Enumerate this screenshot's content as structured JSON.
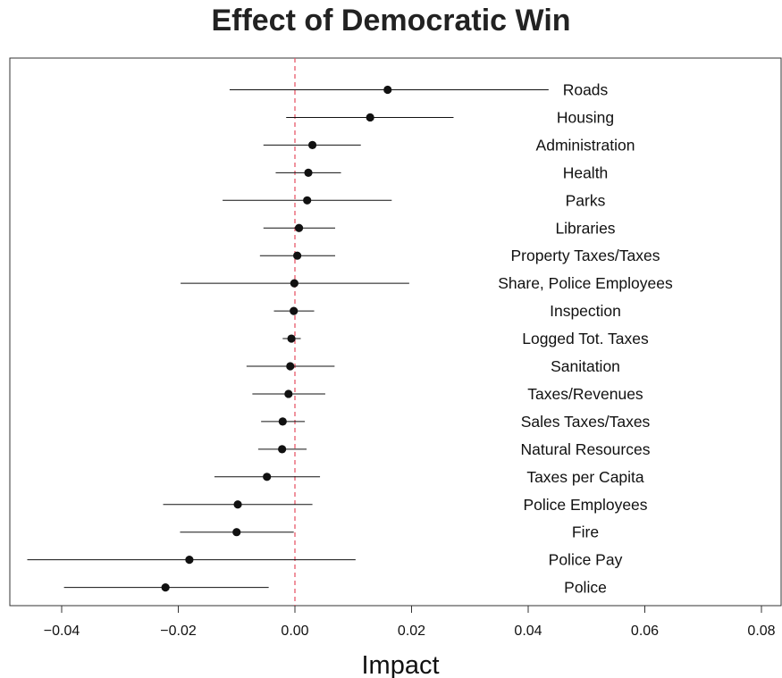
{
  "chart_data": {
    "type": "scatter",
    "title": "Effect of Democratic Win",
    "xlabel": "Impact",
    "ylabel": "",
    "xlim": [
      -0.049,
      0.0835
    ],
    "xticks": [
      -0.04,
      -0.02,
      0.0,
      0.02,
      0.04,
      0.06,
      0.08
    ],
    "xtick_labels": [
      "−0.04",
      "−0.02",
      "0.00",
      "0.02",
      "0.04",
      "0.06",
      "0.08"
    ],
    "reference_line": {
      "x": 0,
      "color": "#e8596a",
      "style": "dashed"
    },
    "grid": false,
    "rows": [
      {
        "label": "Roads",
        "estimate": 0.0159,
        "ci_low": -0.0112,
        "ci_high": 0.0435
      },
      {
        "label": "Housing",
        "estimate": 0.0129,
        "ci_low": -0.0015,
        "ci_high": 0.0272
      },
      {
        "label": "Administration",
        "estimate": 0.003,
        "ci_low": -0.0054,
        "ci_high": 0.0113
      },
      {
        "label": "Health",
        "estimate": 0.0023,
        "ci_low": -0.0033,
        "ci_high": 0.0079
      },
      {
        "label": "Parks",
        "estimate": 0.0021,
        "ci_low": -0.0124,
        "ci_high": 0.0166
      },
      {
        "label": "Libraries",
        "estimate": 0.0007,
        "ci_low": -0.0054,
        "ci_high": 0.0069
      },
      {
        "label": "Property Taxes/Taxes",
        "estimate": 0.0004,
        "ci_low": -0.006,
        "ci_high": 0.0069
      },
      {
        "label": "Share, Police Employees",
        "estimate": -0.0001,
        "ci_low": -0.0196,
        "ci_high": 0.0196
      },
      {
        "label": "Inspection",
        "estimate": -0.0002,
        "ci_low": -0.0036,
        "ci_high": 0.0033
      },
      {
        "label": "Logged Tot. Taxes",
        "estimate": -0.0006,
        "ci_low": -0.0021,
        "ci_high": 0.001
      },
      {
        "label": "Sanitation",
        "estimate": -0.0008,
        "ci_low": -0.0083,
        "ci_high": 0.0068
      },
      {
        "label": "Taxes/Revenues",
        "estimate": -0.0011,
        "ci_low": -0.0073,
        "ci_high": 0.0052
      },
      {
        "label": "Sales Taxes/Taxes",
        "estimate": -0.0021,
        "ci_low": -0.0058,
        "ci_high": 0.0017
      },
      {
        "label": "Natural Resources",
        "estimate": -0.0022,
        "ci_low": -0.0063,
        "ci_high": 0.002
      },
      {
        "label": "Taxes per Capita",
        "estimate": -0.0048,
        "ci_low": -0.0138,
        "ci_high": 0.0043
      },
      {
        "label": "Police Employees",
        "estimate": -0.0098,
        "ci_low": -0.0226,
        "ci_high": 0.003
      },
      {
        "label": "Fire",
        "estimate": -0.01,
        "ci_low": -0.0197,
        "ci_high": -0.0002
      },
      {
        "label": "Police Pay",
        "estimate": -0.0181,
        "ci_low": -0.0459,
        "ci_high": 0.0104
      },
      {
        "label": "Police",
        "estimate": -0.0222,
        "ci_low": -0.0396,
        "ci_high": -0.0045
      }
    ]
  }
}
